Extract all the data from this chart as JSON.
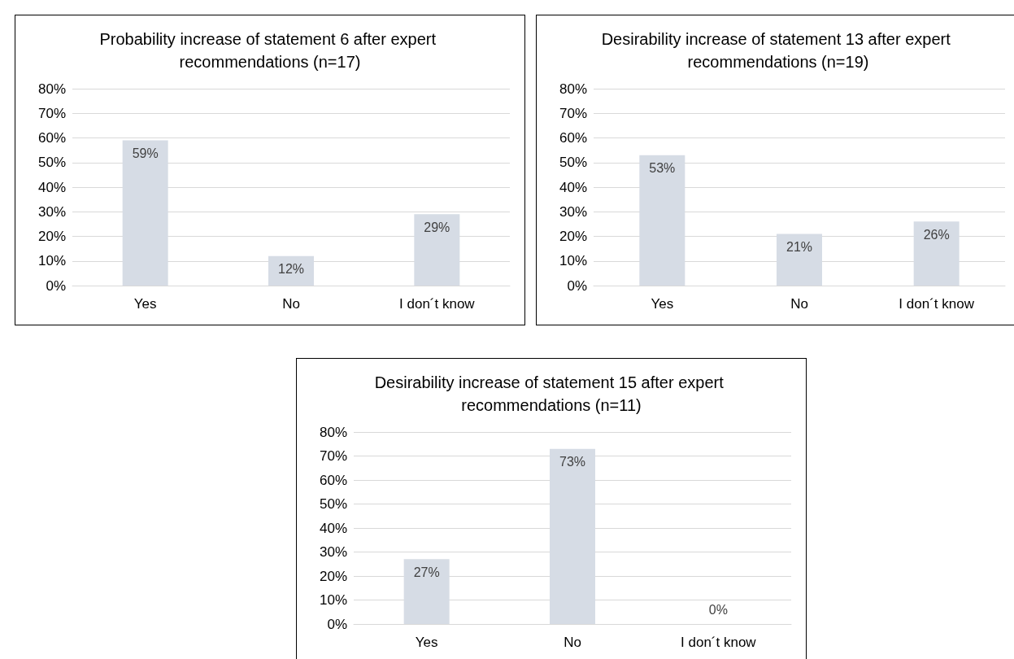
{
  "chart_data": [
    {
      "type": "bar",
      "title": "Probability increase of statement 6 after expert recommendations (n=17)",
      "categories": [
        "Yes",
        "No",
        "I don´t know"
      ],
      "values": [
        59,
        12,
        29
      ],
      "value_labels": [
        "59%",
        "12%",
        "29%"
      ],
      "color": "#d6dce5",
      "ylim": [
        0,
        80
      ],
      "yticks": [
        {
          "value": 0,
          "label": "0%"
        },
        {
          "value": 10,
          "label": "10%"
        },
        {
          "value": 20,
          "label": "20%"
        },
        {
          "value": 30,
          "label": "30%"
        },
        {
          "value": 40,
          "label": "40%"
        },
        {
          "value": 50,
          "label": "50%"
        },
        {
          "value": 60,
          "label": "60%"
        },
        {
          "value": 70,
          "label": "70%"
        },
        {
          "value": 80,
          "label": "80%"
        }
      ],
      "grid": "y"
    },
    {
      "type": "bar",
      "title": "Desirability increase of statement 13 after expert recommendations (n=19)",
      "categories": [
        "Yes",
        "No",
        "I don´t know"
      ],
      "values": [
        53,
        21,
        26
      ],
      "value_labels": [
        "53%",
        "21%",
        "26%"
      ],
      "color": "#d6dce5",
      "ylim": [
        0,
        80
      ],
      "yticks": [
        {
          "value": 0,
          "label": "0%"
        },
        {
          "value": 10,
          "label": "10%"
        },
        {
          "value": 20,
          "label": "20%"
        },
        {
          "value": 30,
          "label": "30%"
        },
        {
          "value": 40,
          "label": "40%"
        },
        {
          "value": 50,
          "label": "50%"
        },
        {
          "value": 60,
          "label": "60%"
        },
        {
          "value": 70,
          "label": "70%"
        },
        {
          "value": 80,
          "label": "80%"
        }
      ],
      "grid": "y"
    },
    {
      "type": "bar",
      "title": "Desirability increase of statement 15 after expert recommendations (n=11)",
      "categories": [
        "Yes",
        "No",
        "I don´t know"
      ],
      "values": [
        27,
        73,
        0
      ],
      "value_labels": [
        "27%",
        "73%",
        "0%"
      ],
      "color": "#d6dce5",
      "ylim": [
        0,
        80
      ],
      "yticks": [
        {
          "value": 0,
          "label": "0%"
        },
        {
          "value": 10,
          "label": "10%"
        },
        {
          "value": 20,
          "label": "20%"
        },
        {
          "value": 30,
          "label": "30%"
        },
        {
          "value": 40,
          "label": "40%"
        },
        {
          "value": 50,
          "label": "50%"
        },
        {
          "value": 60,
          "label": "60%"
        },
        {
          "value": 70,
          "label": "70%"
        },
        {
          "value": 80,
          "label": "80%"
        }
      ],
      "grid": "y"
    }
  ]
}
